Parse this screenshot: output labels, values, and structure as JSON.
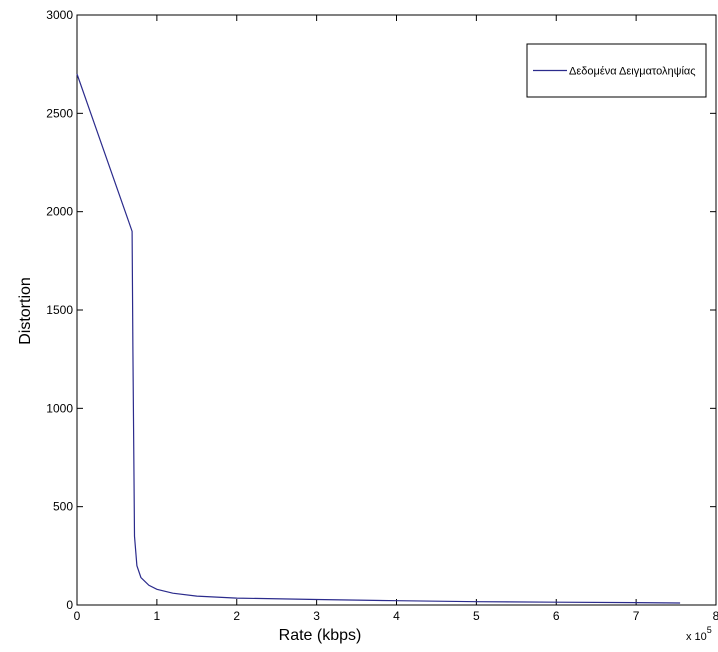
{
  "chart_data": {
    "type": "line",
    "title": "",
    "xlabel": "Rate (kbps)",
    "ylabel": "Distortion",
    "x_exponent_base": "x 10",
    "x_exponent_power": "5",
    "xlim": [
      0,
      8
    ],
    "ylim": [
      0,
      3000
    ],
    "x_ticks": [
      0,
      1,
      2,
      3,
      4,
      5,
      6,
      7,
      8
    ],
    "y_ticks": [
      0,
      500,
      1000,
      1500,
      2000,
      2500,
      3000
    ],
    "grid": false,
    "legend_position": "top-right",
    "line_color": "#2b2b8c",
    "series": [
      {
        "name": "Δεδομένα Δειγματοληψίας",
        "x": [
          0,
          0.69,
          0.7,
          0.72,
          0.75,
          0.8,
          0.9,
          1.0,
          1.2,
          1.5,
          2.0,
          3.0,
          4.0,
          5.0,
          6.0,
          7.0,
          7.55
        ],
        "y": [
          2700,
          1900,
          1300,
          350,
          200,
          140,
          100,
          80,
          60,
          45,
          35,
          28,
          22,
          17,
          14,
          12,
          10
        ]
      }
    ]
  }
}
